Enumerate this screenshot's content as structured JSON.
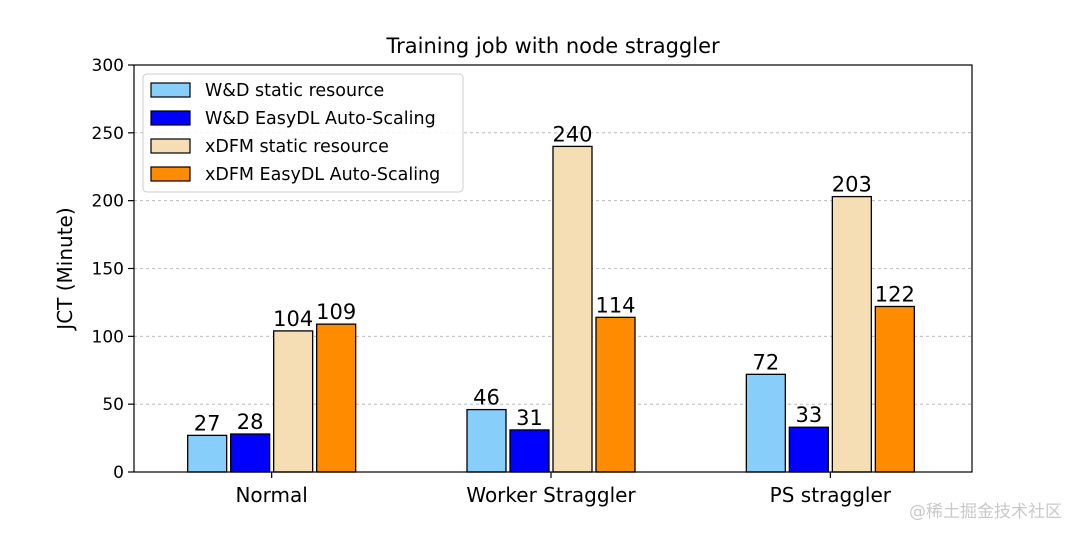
{
  "chart_data": {
    "type": "bar",
    "title": "Training job with node straggler",
    "xlabel": "",
    "ylabel": "JCT (Minute)",
    "ylim": [
      0,
      300
    ],
    "yticks": [
      0,
      50,
      100,
      150,
      200,
      250,
      300
    ],
    "grid": "y-dashed",
    "legend_position": "top-left",
    "categories": [
      "Normal",
      "Worker Straggler",
      "PS straggler"
    ],
    "series": [
      {
        "name": "W&D static resource",
        "color": "#87cefa",
        "values": [
          27,
          46,
          72
        ]
      },
      {
        "name": "W&D EasyDL Auto-Scaling",
        "color": "#0000ff",
        "values": [
          28,
          31,
          33
        ]
      },
      {
        "name": "xDFM static resource",
        "color": "#f5deb3",
        "values": [
          104,
          240,
          203
        ]
      },
      {
        "name": "xDFM EasyDL Auto-Scaling",
        "color": "#ff8c00",
        "values": [
          109,
          114,
          122
        ]
      }
    ]
  },
  "watermark": "@稀土掘金技术社区"
}
